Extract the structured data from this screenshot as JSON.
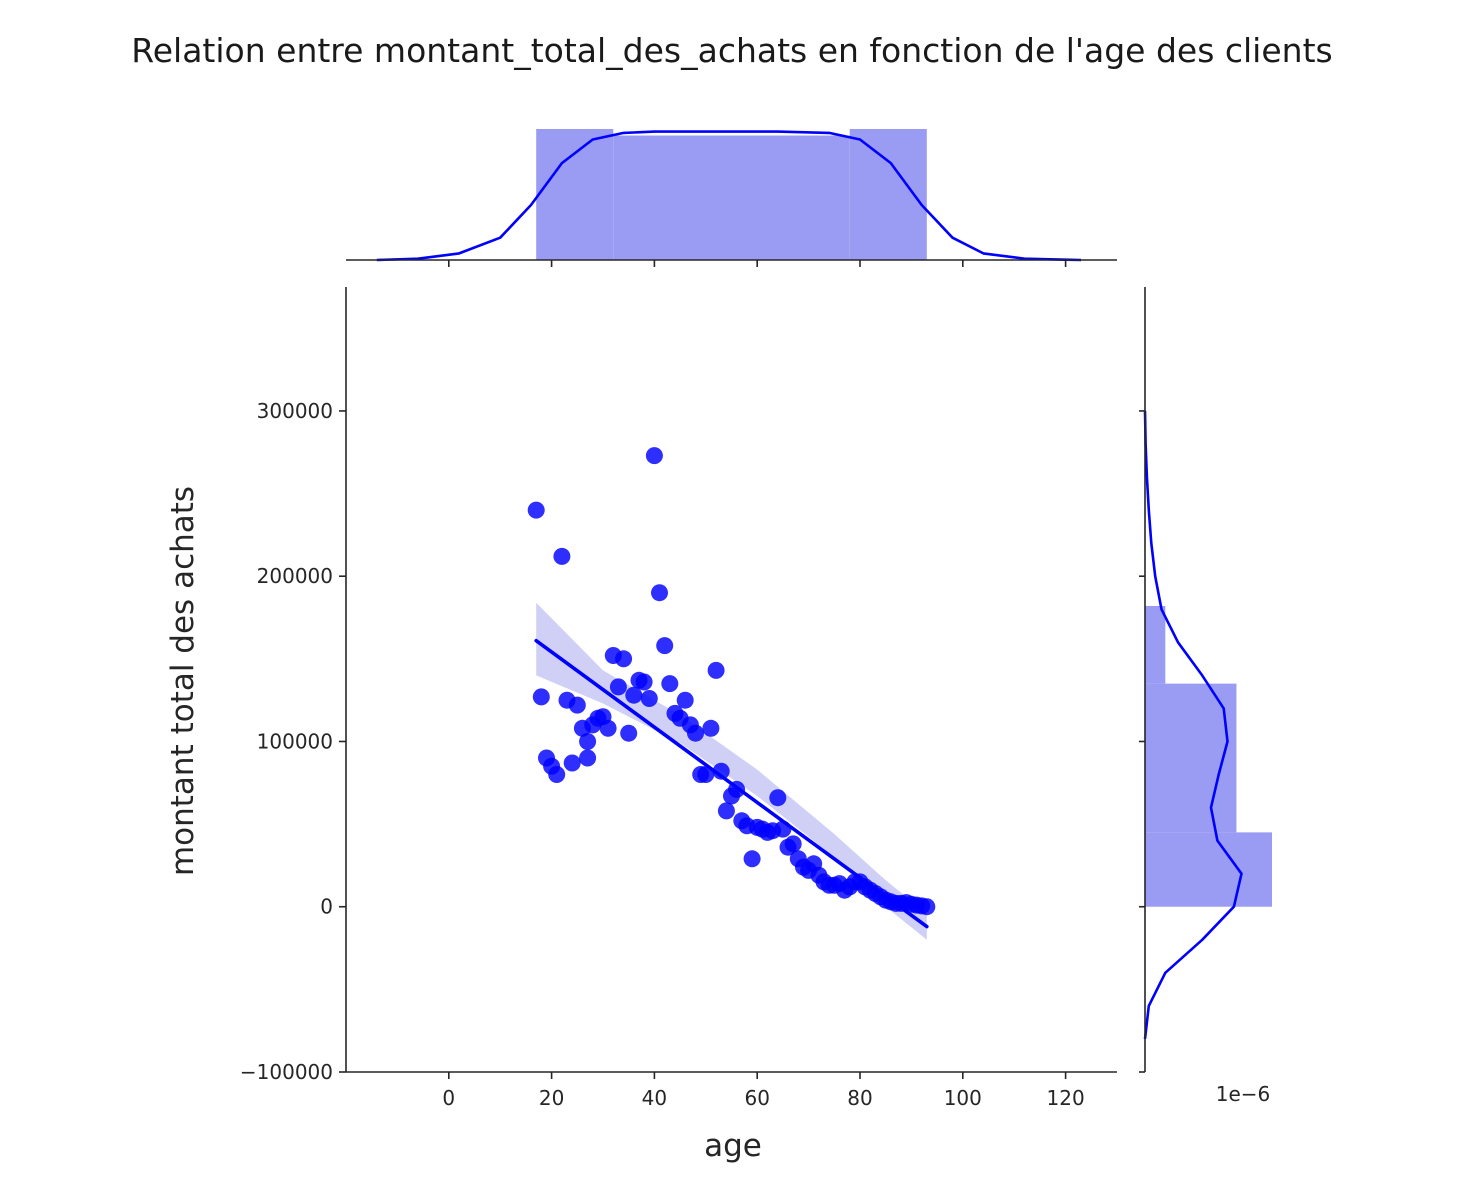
{
  "chart_data": {
    "type": "scatter",
    "title": "Relation entre montant_total_des_achats en fonction de l'age des clients",
    "xlabel": "age",
    "ylabel": "montant total des achats",
    "xlim": [
      -20,
      130
    ],
    "ylim": [
      -100000,
      375000
    ],
    "xticks": [
      0,
      20,
      40,
      60,
      80,
      100,
      120
    ],
    "yticks": [
      -100000,
      0,
      100000,
      200000,
      300000
    ],
    "offset_label": "1e−6",
    "colors": {
      "marker": "#0000ff",
      "band": "#c8c8f5",
      "hist": "#9a9cf4"
    },
    "points": {
      "x": [
        17,
        18,
        19,
        20,
        21,
        22,
        23,
        24,
        25,
        26,
        27,
        27,
        28,
        29,
        30,
        31,
        32,
        33,
        34,
        35,
        36,
        37,
        38,
        39,
        40,
        41,
        42,
        43,
        44,
        45,
        46,
        47,
        48,
        49,
        50,
        51,
        52,
        53,
        54,
        55,
        56,
        57,
        58,
        59,
        60,
        61,
        62,
        63,
        64,
        65,
        66,
        67,
        68,
        69,
        70,
        71,
        72,
        73,
        74,
        75,
        76,
        77,
        78,
        79,
        80,
        81,
        82,
        83,
        84,
        85,
        86,
        87,
        88,
        89,
        90,
        91,
        92,
        93
      ],
      "y": [
        240000,
        127000,
        90000,
        85000,
        80000,
        212000,
        125000,
        87000,
        122000,
        108000,
        100000,
        90000,
        110000,
        114000,
        115000,
        108000,
        152000,
        133000,
        150000,
        105000,
        128000,
        137000,
        136000,
        126000,
        273000,
        190000,
        158000,
        135000,
        117000,
        114000,
        125000,
        110000,
        105000,
        80000,
        80000,
        108000,
        143000,
        82000,
        58000,
        67000,
        71000,
        52000,
        49000,
        29000,
        48000,
        47000,
        45000,
        46000,
        66000,
        47000,
        36000,
        38000,
        29000,
        24000,
        22000,
        26000,
        19000,
        15000,
        13000,
        13000,
        14000,
        10000,
        12000,
        15000,
        15000,
        12000,
        10000,
        8000,
        6000,
        4000,
        3000,
        2000,
        2000,
        2500,
        1500,
        1000,
        500,
        0
      ]
    },
    "regression": {
      "x": [
        17,
        93
      ],
      "y": [
        161000,
        -12000
      ]
    },
    "ci_band": {
      "x": [
        17,
        30,
        45,
        60,
        75,
        85,
        93
      ],
      "upper": [
        184000,
        143000,
        116000,
        83000,
        44000,
        16000,
        -4000
      ],
      "lower": [
        140000,
        123000,
        99000,
        67000,
        30000,
        0,
        -20000
      ]
    },
    "marginal_x": {
      "bins": [
        [
          17,
          32
        ],
        [
          32,
          78
        ],
        [
          78,
          93
        ]
      ],
      "heights": [
        1.0,
        0.95,
        1.0
      ],
      "kde": {
        "x": [
          -14,
          -6,
          2,
          10,
          16,
          22,
          28,
          34,
          40,
          52,
          64,
          74,
          80,
          86,
          92,
          98,
          104,
          112,
          120,
          123
        ],
        "density": [
          0.0,
          0.01,
          0.05,
          0.17,
          0.42,
          0.74,
          0.92,
          0.97,
          0.98,
          0.98,
          0.98,
          0.97,
          0.92,
          0.74,
          0.42,
          0.17,
          0.05,
          0.01,
          0.002,
          0.0
        ]
      }
    },
    "marginal_y": {
      "bins": [
        [
          0,
          45000
        ],
        [
          45000,
          135000
        ],
        [
          135000,
          182000
        ]
      ],
      "heights": [
        1.0,
        0.72,
        0.16
      ],
      "kde": {
        "y": [
          -80000,
          -60000,
          -40000,
          -20000,
          0,
          20000,
          40000,
          60000,
          80000,
          100000,
          120000,
          140000,
          160000,
          180000,
          200000,
          220000,
          240000,
          260000,
          280000,
          300000
        ],
        "density": [
          0.0,
          0.03,
          0.16,
          0.45,
          0.7,
          0.76,
          0.57,
          0.52,
          0.58,
          0.65,
          0.62,
          0.45,
          0.26,
          0.13,
          0.08,
          0.05,
          0.03,
          0.015,
          0.005,
          0.0
        ]
      }
    }
  }
}
